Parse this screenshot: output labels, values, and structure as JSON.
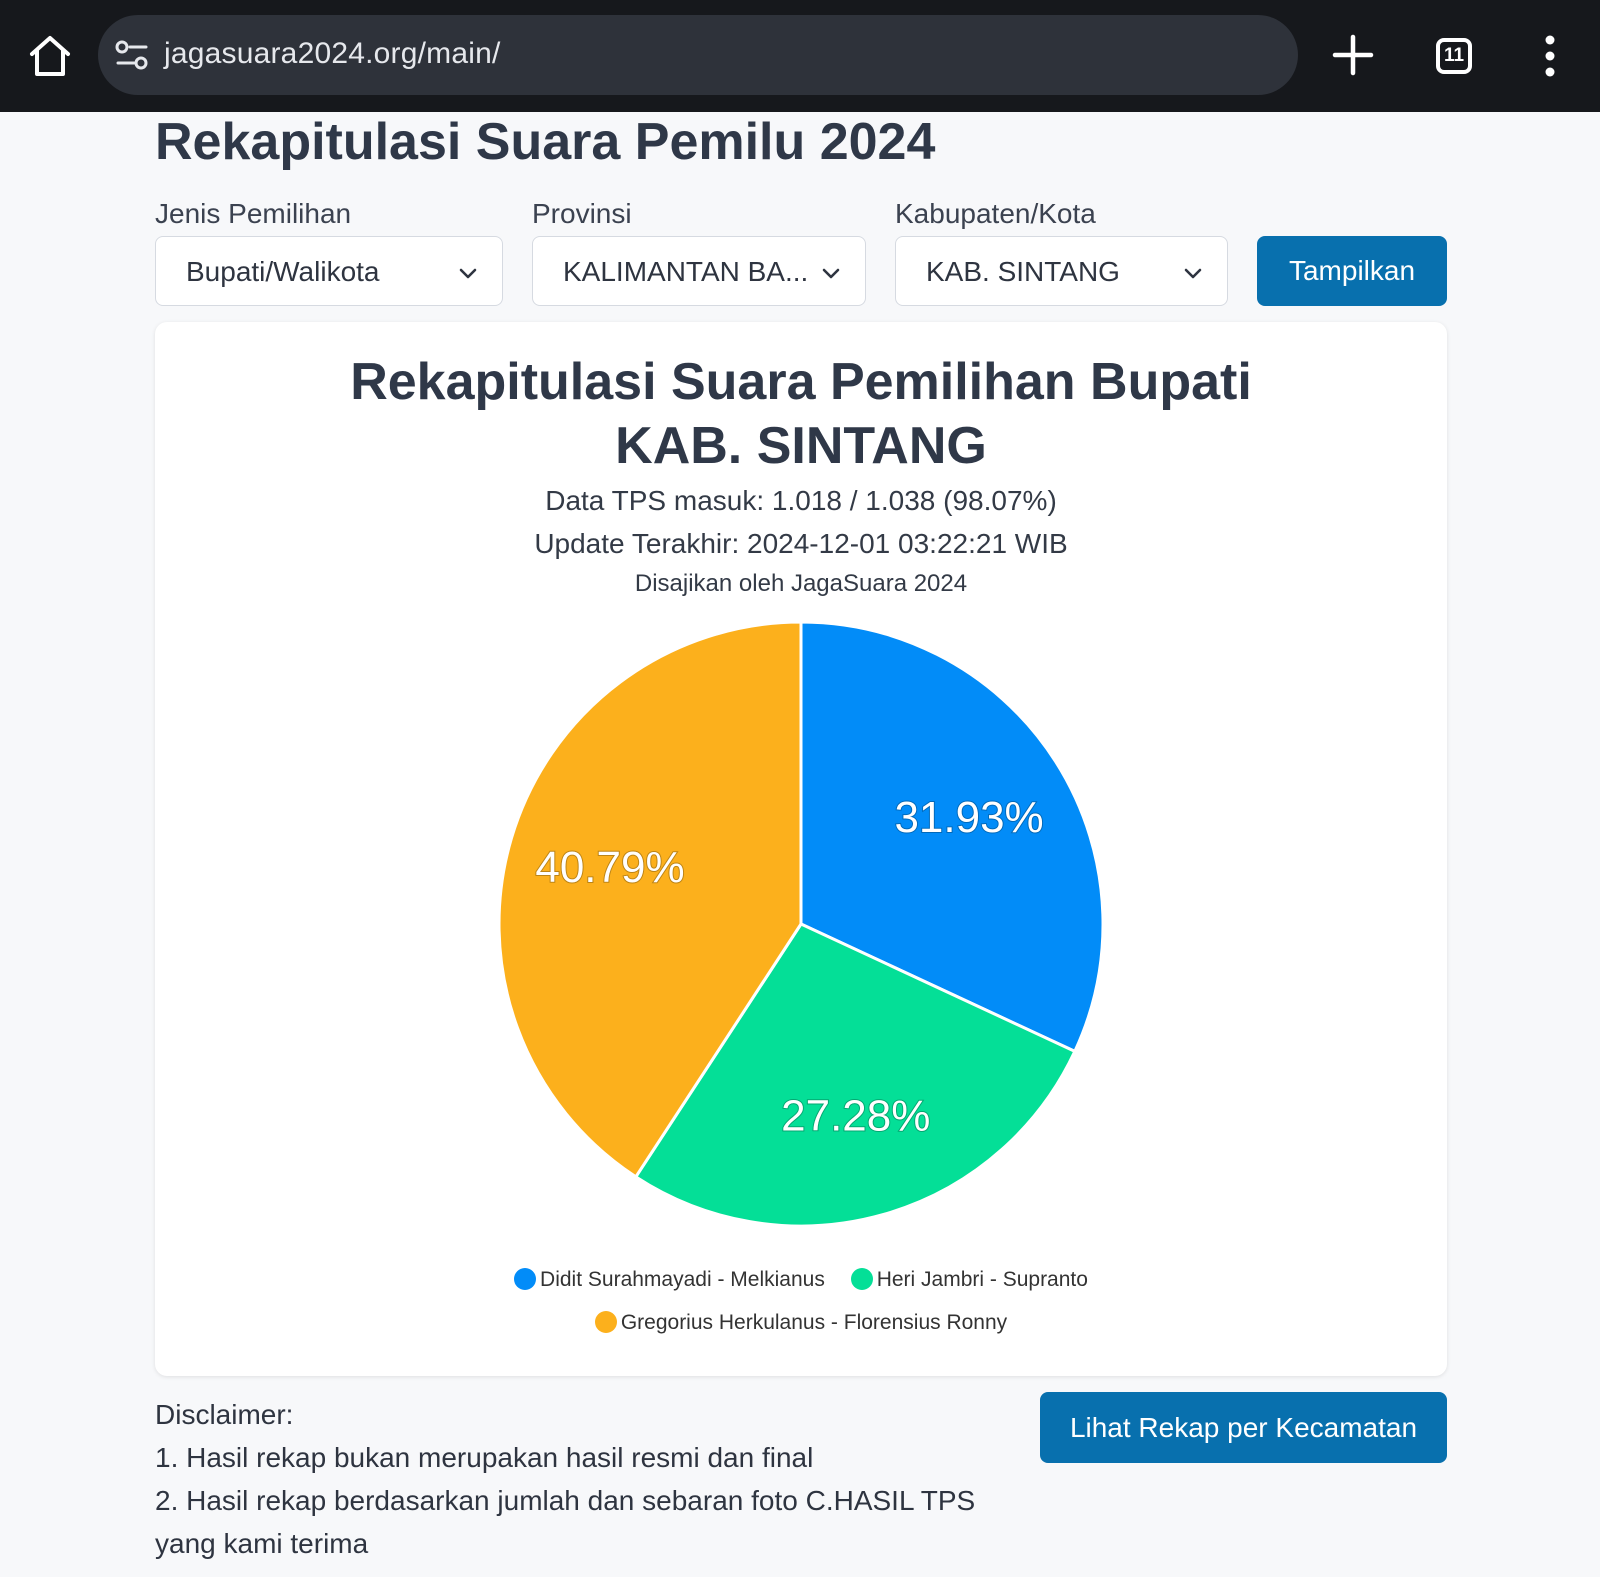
{
  "browser": {
    "url": "jagasuara2024.org/main/",
    "tab_count": "11"
  },
  "page": {
    "title": "Rekapitulasi Suara Pemilu 2024"
  },
  "filters": {
    "jenis_label": "Jenis Pemilihan",
    "jenis_value": "Bupati/Walikota",
    "provinsi_label": "Provinsi",
    "provinsi_value": "KALIMANTAN BA...",
    "kabupaten_label": "Kabupaten/Kota",
    "kabupaten_value": "KAB. SINTANG",
    "submit_label": "Tampilkan"
  },
  "chart_card": {
    "title_line1": "Rekapitulasi Suara Pemilihan Bupati",
    "title_line2": "KAB. SINTANG",
    "tps_info": "Data TPS masuk: 1.018 / 1.038 (98.07%)",
    "last_update": "Update Terakhir: 2024-12-01 03:22:21 WIB",
    "source": "Disajikan oleh JagaSuara 2024"
  },
  "chart_data": {
    "type": "pie",
    "title": "Rekapitulasi Suara Pemilihan Bupati KAB. SINTANG",
    "categories": [
      "Didit Surahmayadi - Melkianus",
      "Heri Jambri - Supranto",
      "Gregorius Herkulanus - Florensius Ronny"
    ],
    "values": [
      31.93,
      27.28,
      40.79
    ],
    "labels": [
      "31.93%",
      "27.28%",
      "40.79%"
    ],
    "colors": [
      "#028cf8",
      "#04df97",
      "#fcb01c"
    ],
    "legend_position": "bottom"
  },
  "bottom": {
    "disclaimer_title": "Disclaimer:",
    "disclaimer_1": "1. Hasil rekap bukan merupakan hasil resmi dan final",
    "disclaimer_2": "2. Hasil rekap berdasarkan jumlah dan sebaran foto C.HASIL TPS yang kami terima",
    "rekap_button": "Lihat Rekap per Kecamatan"
  },
  "colors": {
    "primary_button": "#0870ae",
    "browser_bar": "#16181c"
  },
  "icons": [
    "home-icon",
    "site-settings-icon",
    "plus-icon",
    "tabs-icon",
    "more-vert-icon",
    "chevron-down-icon"
  ]
}
